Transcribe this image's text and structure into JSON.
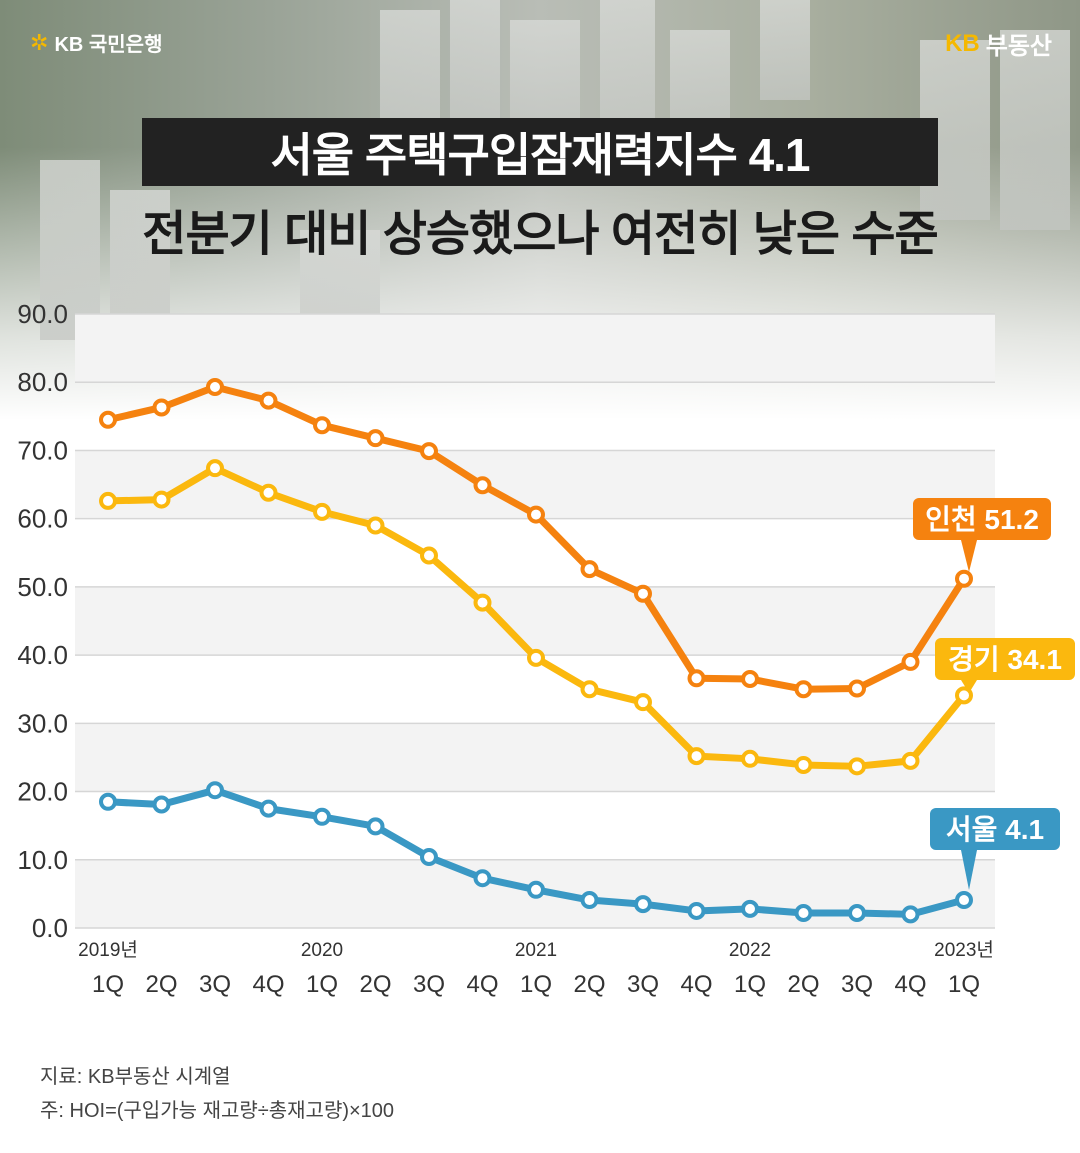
{
  "header": {
    "bank_logo_text": "KB 국민은행",
    "brand_logo_kb": "KB",
    "brand_logo_text": "부동산",
    "title_line1": "서울 주택구입잠재력지수 4.1",
    "title_line2": "전분기 대비 상승했으나 여전히 낮은 수준"
  },
  "footer": {
    "source": "지료: KB부동산 시계열",
    "note": "주: HOI=(구입가능 재고량÷총재고량)×100"
  },
  "chart_data": {
    "type": "line",
    "ylim": [
      0,
      90
    ],
    "y_ticks": [
      "0.0",
      "10.0",
      "20.0",
      "30.0",
      "40.0",
      "50.0",
      "60.0",
      "70.0",
      "80.0",
      "90.0"
    ],
    "categories": [
      "1Q",
      "2Q",
      "3Q",
      "4Q",
      "1Q",
      "2Q",
      "3Q",
      "4Q",
      "1Q",
      "2Q",
      "3Q",
      "4Q",
      "1Q",
      "2Q",
      "3Q",
      "4Q",
      "1Q"
    ],
    "year_labels": [
      "2019년",
      "",
      "",
      "",
      "2020",
      "",
      "",
      "",
      "2021",
      "",
      "",
      "",
      "2022",
      "",
      "",
      "",
      "2023년"
    ],
    "grid": true,
    "series": [
      {
        "name": "인천",
        "color": "#f5820f",
        "callout": "인천 51.2",
        "values": [
          74.5,
          76.3,
          79.3,
          77.3,
          73.7,
          71.8,
          69.9,
          64.9,
          60.6,
          52.6,
          49.0,
          36.6,
          36.5,
          35.0,
          35.1,
          39.0,
          51.2
        ]
      },
      {
        "name": "경기",
        "color": "#fbb80e",
        "callout": "경기 34.1",
        "values": [
          62.6,
          62.8,
          67.4,
          63.8,
          61.0,
          59.0,
          54.6,
          47.7,
          39.6,
          35.0,
          33.1,
          25.2,
          24.8,
          23.9,
          23.7,
          24.5,
          34.1
        ]
      },
      {
        "name": "서울",
        "color": "#3a98c4",
        "callout": "서울 4.1",
        "values": [
          18.5,
          18.1,
          20.2,
          17.5,
          16.3,
          14.9,
          10.4,
          7.3,
          5.6,
          4.1,
          3.5,
          2.5,
          2.8,
          2.2,
          2.2,
          2.0,
          4.1
        ]
      }
    ]
  }
}
